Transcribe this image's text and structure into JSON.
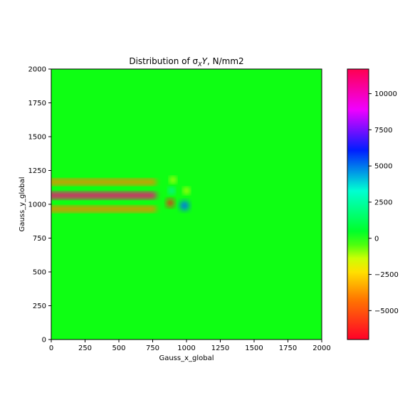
{
  "chart_data": {
    "type": "heatmap",
    "title": "Distribution of σ",
    "title_sub": "X",
    "title_sym": "Y",
    "title_suffix": ", N/mm2",
    "xlabel": "Gauss_x_global",
    "ylabel": "Gauss_y_global",
    "xlim": [
      0,
      2000
    ],
    "ylim": [
      0,
      2000
    ],
    "x_ticks": [
      0,
      250,
      500,
      750,
      1000,
      1250,
      1500,
      1750,
      2000
    ],
    "y_ticks": [
      0,
      250,
      500,
      750,
      1000,
      1250,
      1500,
      1750,
      2000
    ],
    "background_value": 0,
    "colormap": "gist_rainbow",
    "colorbar": {
      "range": [
        -7000,
        11700
      ],
      "ticks": [
        -5000,
        -2500,
        0,
        2500,
        5000,
        7500,
        10000
      ],
      "tick_labels": [
        "−5000",
        "−2500",
        "0",
        "2500",
        "5000",
        "7500",
        "10000"
      ]
    },
    "features": [
      {
        "kind": "band",
        "x_range": [
          0,
          780
        ],
        "y_center": 1065,
        "thickness": 45,
        "value": 11000
      },
      {
        "kind": "band",
        "x_range": [
          0,
          780
        ],
        "y_center": 1165,
        "thickness": 40,
        "value": -4000
      },
      {
        "kind": "band",
        "x_range": [
          0,
          780
        ],
        "y_center": 965,
        "thickness": 40,
        "value": -4000
      },
      {
        "kind": "spot",
        "x": 880,
        "y": 1010,
        "r": 28,
        "value": -6500
      },
      {
        "kind": "spot",
        "x": 890,
        "y": 1100,
        "r": 22,
        "value": 3500
      },
      {
        "kind": "spot",
        "x": 985,
        "y": 990,
        "r": 35,
        "value": 5000
      },
      {
        "kind": "spot",
        "x": 1000,
        "y": 1100,
        "r": 22,
        "value": -1800
      },
      {
        "kind": "spot",
        "x": 900,
        "y": 1180,
        "r": 22,
        "value": -1800
      }
    ]
  }
}
